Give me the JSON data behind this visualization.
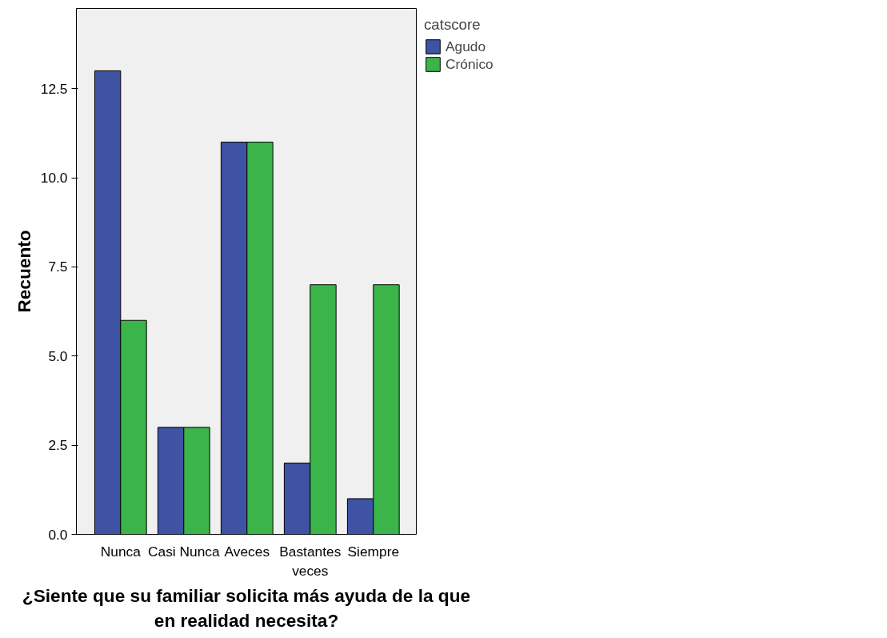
{
  "chart_data": {
    "type": "bar",
    "xlabel": "¿Siente que su familiar solicita más ayuda de la que en realidad necesita?",
    "ylabel": "Recuento",
    "legend_title": "catscore",
    "categories": [
      "Nunca",
      "Casi Nunca",
      "Aveces",
      "Bastantes veces",
      "Siempre"
    ],
    "series": [
      {
        "name": "Agudo",
        "color": "#3e53a4",
        "values": [
          13,
          3,
          11,
          2,
          1
        ]
      },
      {
        "name": "Crónico",
        "color": "#3bb44a",
        "values": [
          6,
          3,
          11,
          7,
          7
        ]
      }
    ],
    "ylim": [
      0,
      14.75
    ],
    "yticks": [
      {
        "value": 0,
        "label": "0.0"
      },
      {
        "value": 2.5,
        "label": "2.5"
      },
      {
        "value": 5,
        "label": "5.0"
      },
      {
        "value": 7.5,
        "label": "7.5"
      },
      {
        "value": 10,
        "label": "10.0"
      },
      {
        "value": 12.5,
        "label": "12.5"
      }
    ],
    "grid": false,
    "legend": "top right"
  }
}
